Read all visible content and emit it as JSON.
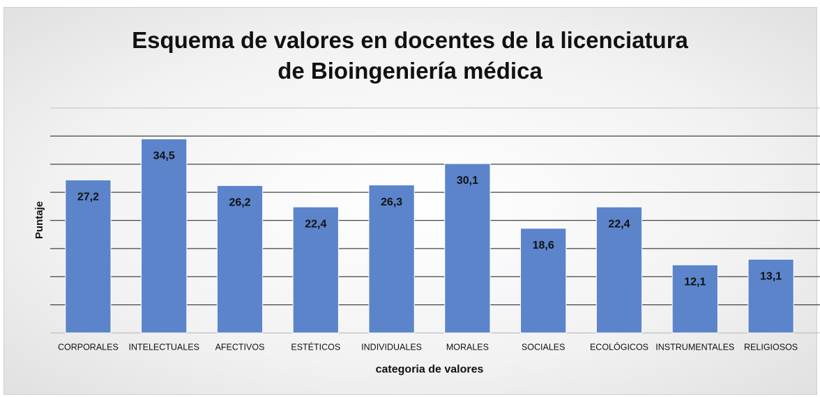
{
  "chart_data": {
    "type": "bar",
    "title": "Esquema de valores en docentes de la licenciatura de Bioingeniería médica",
    "x_label": "categoria de valores",
    "y_label": "Puntaje",
    "categories": [
      "CORPORALES",
      "INTELECTUALES",
      "AFECTIVOS",
      "ESTÉTICOS",
      "INDIVIDUALES",
      "MORALES",
      "SOCIALES",
      "ECOLÓGICOS",
      "INSTRUMENTALES",
      "RELIGIOSOS"
    ],
    "values": [
      27.2,
      34.5,
      26.2,
      22.4,
      26.3,
      30.1,
      18.6,
      22.4,
      12.1,
      13.1
    ],
    "value_labels": [
      "27,2",
      "34,5",
      "26,2",
      "22,4",
      "26,3",
      "30,1",
      "18,6",
      "22,4",
      "12,1",
      "13,1"
    ],
    "color": "#5b84cb",
    "ylim": [
      0,
      40
    ],
    "yticks": [
      0,
      5,
      10,
      15,
      20,
      25,
      30,
      35,
      40
    ],
    "grid": true
  }
}
